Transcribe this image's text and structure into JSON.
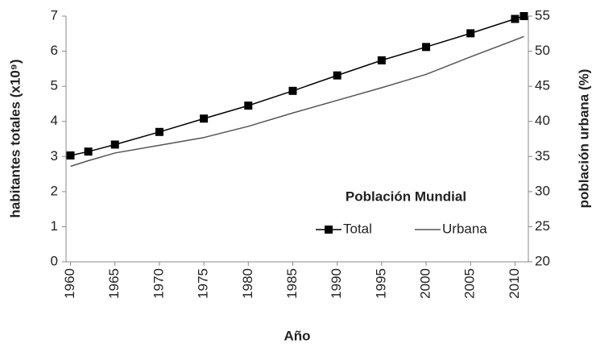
{
  "chart_data": {
    "type": "line",
    "ylabel": "habitantes totales (x10⁹)",
    "y2label": "población urbana (%)",
    "xlabel": "Año",
    "legend_title": "Población Mundial",
    "x": [
      1960,
      1962,
      1965,
      1970,
      1975,
      1980,
      1985,
      1990,
      1995,
      2000,
      2005,
      2010,
      2011
    ],
    "series": [
      {
        "name": "Total",
        "color": "#000000",
        "marker": "square",
        "values": [
          3.03,
          3.14,
          3.34,
          3.7,
          4.08,
          4.45,
          4.87,
          5.31,
          5.74,
          6.12,
          6.51,
          6.92,
          7.0
        ]
      },
      {
        "name": "Urbana",
        "color": "#555555",
        "axis": "y2",
        "values": [
          33.6,
          34.4,
          35.5,
          36.6,
          37.7,
          39.3,
          41.2,
          43.0,
          44.8,
          46.7,
          49.2,
          51.6,
          52.1
        ]
      }
    ],
    "xlim": [
      1959.5,
      2011.5
    ],
    "xticks": [
      1960,
      1965,
      1970,
      1975,
      1980,
      1985,
      1990,
      1995,
      2000,
      2005,
      2010
    ],
    "ylim": [
      0,
      7
    ],
    "yticks": [
      0,
      1,
      2,
      3,
      4,
      5,
      6,
      7
    ],
    "y2lim": [
      20,
      55
    ],
    "y2ticks": [
      20,
      25,
      30,
      35,
      40,
      45,
      50,
      55
    ],
    "legend": "lower right"
  }
}
